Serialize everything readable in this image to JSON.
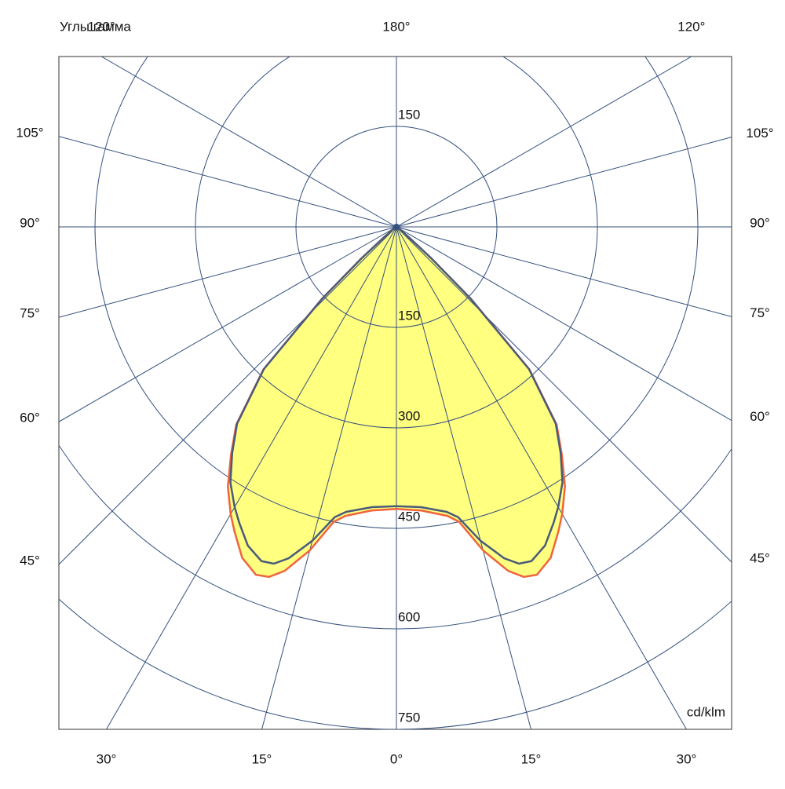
{
  "chart_data": {
    "type": "polar",
    "title": "Углы гамма",
    "unit_label": "cd/klm",
    "rlim": [
      0,
      750
    ],
    "rticks": [
      150,
      300,
      450,
      600,
      750
    ],
    "rticks_upper": [
      150
    ],
    "gamma_ticks_left": [
      {
        "value": 120,
        "label": "120°"
      },
      {
        "value": 105,
        "label": "105°"
      },
      {
        "value": 90,
        "label": "90°"
      },
      {
        "value": 75,
        "label": "75°"
      },
      {
        "value": 60,
        "label": "60°"
      },
      {
        "value": 45,
        "label": "45°"
      },
      {
        "value": 30,
        "label": "30°"
      },
      {
        "value": 15,
        "label": "15°"
      }
    ],
    "gamma_ticks_right": [
      {
        "value": 120,
        "label": "120°"
      },
      {
        "value": 105,
        "label": "105°"
      },
      {
        "value": 90,
        "label": "90°"
      },
      {
        "value": 75,
        "label": "75°"
      },
      {
        "value": 60,
        "label": "60°"
      },
      {
        "value": 45,
        "label": "45°"
      },
      {
        "value": 30,
        "label": "30°"
      },
      {
        "value": 15,
        "label": "15°"
      }
    ],
    "gamma_ticks_center": [
      {
        "value": 0,
        "label": "0°"
      },
      {
        "value": 180,
        "label": "180°"
      }
    ],
    "gamma": [
      0,
      5,
      10,
      12,
      15,
      18,
      20,
      22,
      25,
      28,
      30,
      33,
      36,
      39,
      43,
      46,
      48,
      50,
      55,
      60,
      90
    ],
    "fill": "#ffff80",
    "series": [
      {
        "color": "#f0643c",
        "values": [
          421,
          425,
          438,
          450,
          500,
          540,
          556,
          560,
          545,
          515,
          495,
          462,
          420,
          380,
          291,
          154,
          70,
          25,
          5,
          0,
          0
        ]
      },
      {
        "color": "#4a5a7a",
        "values": [
          417,
          420,
          432,
          443,
          485,
          520,
          535,
          538,
          525,
          500,
          483,
          455,
          417,
          378,
          290,
          154,
          70,
          25,
          5,
          0,
          0
        ]
      }
    ]
  }
}
